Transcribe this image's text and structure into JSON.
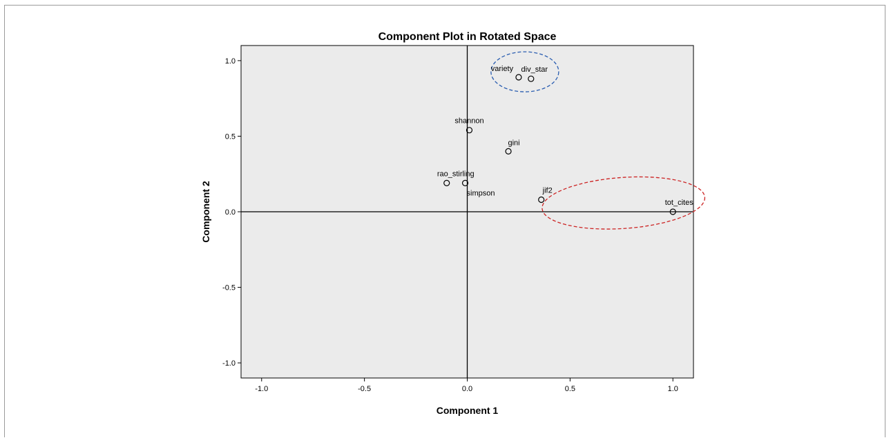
{
  "chart_data": {
    "type": "scatter",
    "title": "Component Plot in Rotated Space",
    "xlabel": "Component 1",
    "ylabel": "Component 2",
    "xlim": [
      -1.1,
      1.1
    ],
    "ylim": [
      -1.1,
      1.1
    ],
    "xticks": [
      -1.0,
      -0.5,
      0.0,
      0.5,
      1.0
    ],
    "yticks": [
      -1.0,
      -0.5,
      0.0,
      0.5,
      1.0
    ],
    "xtick_labels": [
      "-1.0",
      "-0.5",
      "0.0",
      "0.5",
      "1.0"
    ],
    "ytick_labels": [
      "-1.0",
      "-0.5",
      "0.0",
      "0.5",
      "1.0"
    ],
    "grid": false,
    "plot_background": "#ebebeb",
    "points": [
      {
        "label": "variety",
        "x": 0.25,
        "y": 0.89
      },
      {
        "label": "div_star",
        "x": 0.31,
        "y": 0.88
      },
      {
        "label": "shannon",
        "x": 0.01,
        "y": 0.54
      },
      {
        "label": "gini",
        "x": 0.2,
        "y": 0.4
      },
      {
        "label": "rao_stirling",
        "x": -0.1,
        "y": 0.19
      },
      {
        "label": "simpson",
        "x": -0.01,
        "y": 0.19
      },
      {
        "label": "jif2",
        "x": 0.36,
        "y": 0.08
      },
      {
        "label": "tot_cites",
        "x": 1.0,
        "y": 0.0
      }
    ],
    "annotations": [
      {
        "shape": "ellipse",
        "color": "#2a5db0",
        "style": "dashed",
        "encloses": [
          "variety",
          "div_star"
        ]
      },
      {
        "shape": "ellipse",
        "color": "#cc2222",
        "style": "dashed",
        "encloses": [
          "jif2",
          "tot_cites"
        ]
      }
    ]
  }
}
